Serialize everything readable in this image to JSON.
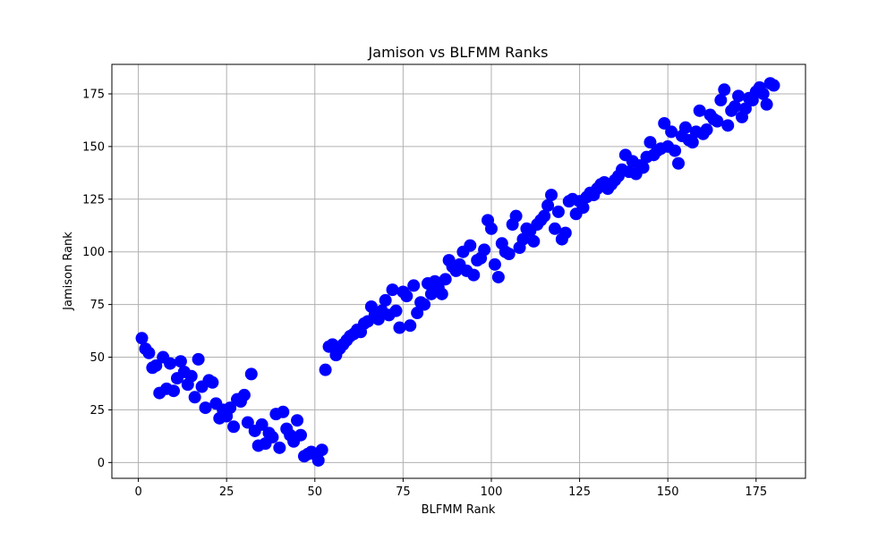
{
  "chart_data": {
    "type": "scatter",
    "title": "Jamison vs BLFMM Ranks",
    "xlabel": "BLFMM Rank",
    "ylabel": "Jamison Rank",
    "xlim": [
      -7.5,
      189
    ],
    "ylim": [
      -7.5,
      189
    ],
    "xticks": [
      0,
      25,
      50,
      75,
      100,
      125,
      150,
      175
    ],
    "yticks": [
      0,
      25,
      50,
      75,
      100,
      125,
      150,
      175
    ],
    "xtick_labels": [
      "0",
      "25",
      "50",
      "75",
      "100",
      "125",
      "150",
      "175"
    ],
    "ytick_labels": [
      "0",
      "25",
      "50",
      "75",
      "100",
      "125",
      "150",
      "175"
    ],
    "grid": true,
    "legend": false,
    "marker_color": "#0000ff",
    "points": [
      [
        1,
        59
      ],
      [
        2,
        54
      ],
      [
        3,
        52
      ],
      [
        4,
        45
      ],
      [
        5,
        46
      ],
      [
        6,
        33
      ],
      [
        7,
        50
      ],
      [
        8,
        35
      ],
      [
        9,
        47
      ],
      [
        10,
        34
      ],
      [
        11,
        40
      ],
      [
        12,
        48
      ],
      [
        13,
        43
      ],
      [
        14,
        37
      ],
      [
        15,
        41
      ],
      [
        16,
        31
      ],
      [
        17,
        49
      ],
      [
        18,
        36
      ],
      [
        19,
        26
      ],
      [
        20,
        39
      ],
      [
        21,
        38
      ],
      [
        22,
        28
      ],
      [
        23,
        21
      ],
      [
        24,
        25
      ],
      [
        25,
        22
      ],
      [
        26,
        26
      ],
      [
        27,
        17
      ],
      [
        28,
        30
      ],
      [
        29,
        29
      ],
      [
        30,
        32
      ],
      [
        31,
        19
      ],
      [
        32,
        42
      ],
      [
        33,
        15
      ],
      [
        34,
        8
      ],
      [
        35,
        18
      ],
      [
        36,
        9
      ],
      [
        37,
        14
      ],
      [
        38,
        12
      ],
      [
        39,
        23
      ],
      [
        40,
        7
      ],
      [
        41,
        24
      ],
      [
        42,
        16
      ],
      [
        43,
        13
      ],
      [
        44,
        10
      ],
      [
        45,
        20
      ],
      [
        46,
        13
      ],
      [
        47,
        3
      ],
      [
        48,
        4
      ],
      [
        49,
        5
      ],
      [
        50,
        4
      ],
      [
        51,
        1
      ],
      [
        52,
        6
      ],
      [
        53,
        44
      ],
      [
        54,
        55
      ],
      [
        55,
        56
      ],
      [
        56,
        51
      ],
      [
        57,
        54
      ],
      [
        58,
        56
      ],
      [
        59,
        58
      ],
      [
        60,
        60
      ],
      [
        61,
        61
      ],
      [
        62,
        63
      ],
      [
        63,
        62
      ],
      [
        64,
        66
      ],
      [
        65,
        67
      ],
      [
        66,
        74
      ],
      [
        67,
        70
      ],
      [
        68,
        68
      ],
      [
        69,
        72
      ],
      [
        70,
        77
      ],
      [
        71,
        70
      ],
      [
        72,
        82
      ],
      [
        73,
        72
      ],
      [
        74,
        64
      ],
      [
        75,
        81
      ],
      [
        76,
        79
      ],
      [
        77,
        65
      ],
      [
        78,
        84
      ],
      [
        79,
        71
      ],
      [
        80,
        76
      ],
      [
        81,
        75
      ],
      [
        82,
        85
      ],
      [
        83,
        80
      ],
      [
        84,
        86
      ],
      [
        85,
        83
      ],
      [
        86,
        80
      ],
      [
        87,
        87
      ],
      [
        88,
        96
      ],
      [
        89,
        93
      ],
      [
        90,
        91
      ],
      [
        91,
        94
      ],
      [
        92,
        100
      ],
      [
        93,
        91
      ],
      [
        94,
        103
      ],
      [
        95,
        89
      ],
      [
        96,
        96
      ],
      [
        97,
        97
      ],
      [
        98,
        101
      ],
      [
        99,
        115
      ],
      [
        100,
        111
      ],
      [
        101,
        94
      ],
      [
        102,
        88
      ],
      [
        103,
        104
      ],
      [
        104,
        100
      ],
      [
        105,
        99
      ],
      [
        106,
        113
      ],
      [
        107,
        117
      ],
      [
        108,
        102
      ],
      [
        109,
        106
      ],
      [
        110,
        111
      ],
      [
        111,
        110
      ],
      [
        112,
        105
      ],
      [
        113,
        113
      ],
      [
        114,
        115
      ],
      [
        115,
        117
      ],
      [
        116,
        122
      ],
      [
        117,
        127
      ],
      [
        118,
        111
      ],
      [
        119,
        119
      ],
      [
        120,
        106
      ],
      [
        121,
        109
      ],
      [
        122,
        124
      ],
      [
        123,
        125
      ],
      [
        124,
        118
      ],
      [
        125,
        124
      ],
      [
        126,
        121
      ],
      [
        127,
        126
      ],
      [
        128,
        128
      ],
      [
        129,
        127
      ],
      [
        130,
        130
      ],
      [
        131,
        132
      ],
      [
        132,
        133
      ],
      [
        133,
        130
      ],
      [
        134,
        132
      ],
      [
        135,
        134
      ],
      [
        136,
        136
      ],
      [
        137,
        139
      ],
      [
        138,
        146
      ],
      [
        139,
        138
      ],
      [
        140,
        143
      ],
      [
        141,
        137
      ],
      [
        142,
        141
      ],
      [
        143,
        140
      ],
      [
        144,
        145
      ],
      [
        145,
        152
      ],
      [
        146,
        146
      ],
      [
        147,
        148
      ],
      [
        148,
        149
      ],
      [
        149,
        161
      ],
      [
        150,
        150
      ],
      [
        151,
        157
      ],
      [
        152,
        148
      ],
      [
        153,
        142
      ],
      [
        154,
        155
      ],
      [
        155,
        159
      ],
      [
        156,
        153
      ],
      [
        157,
        152
      ],
      [
        158,
        157
      ],
      [
        159,
        167
      ],
      [
        160,
        156
      ],
      [
        161,
        158
      ],
      [
        162,
        165
      ],
      [
        163,
        163
      ],
      [
        164,
        162
      ],
      [
        165,
        172
      ],
      [
        166,
        177
      ],
      [
        167,
        160
      ],
      [
        168,
        167
      ],
      [
        169,
        169
      ],
      [
        170,
        174
      ],
      [
        171,
        164
      ],
      [
        172,
        168
      ],
      [
        173,
        173
      ],
      [
        174,
        172
      ],
      [
        175,
        176
      ],
      [
        176,
        178
      ],
      [
        177,
        175
      ],
      [
        178,
        170
      ],
      [
        179,
        180
      ],
      [
        180,
        179
      ]
    ]
  }
}
